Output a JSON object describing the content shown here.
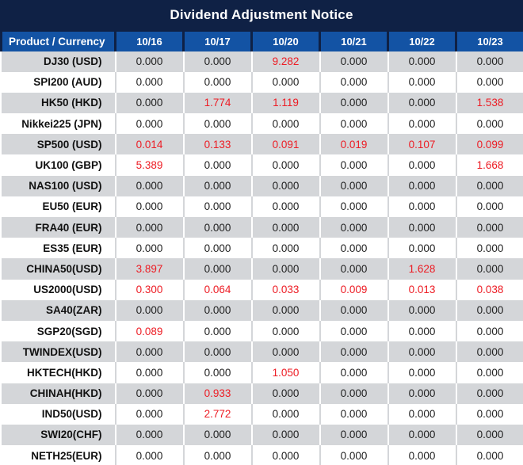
{
  "title": "Dividend Adjustment Notice",
  "header": {
    "product_column": "Product / Currency",
    "dates": [
      "10/16",
      "10/17",
      "10/20",
      "10/21",
      "10/22",
      "10/23"
    ]
  },
  "rows": [
    {
      "product": "DJ30 (USD)",
      "values": [
        "0.000",
        "0.000",
        "9.282",
        "0.000",
        "0.000",
        "0.000"
      ]
    },
    {
      "product": "SPI200 (AUD)",
      "values": [
        "0.000",
        "0.000",
        "0.000",
        "0.000",
        "0.000",
        "0.000"
      ]
    },
    {
      "product": "HK50 (HKD)",
      "values": [
        "0.000",
        "1.774",
        "1.119",
        "0.000",
        "0.000",
        "1.538"
      ]
    },
    {
      "product": "Nikkei225 (JPN)",
      "values": [
        "0.000",
        "0.000",
        "0.000",
        "0.000",
        "0.000",
        "0.000"
      ]
    },
    {
      "product": "SP500 (USD)",
      "values": [
        "0.014",
        "0.133",
        "0.091",
        "0.019",
        "0.107",
        "0.099"
      ]
    },
    {
      "product": "UK100 (GBP)",
      "values": [
        "5.389",
        "0.000",
        "0.000",
        "0.000",
        "0.000",
        "1.668"
      ]
    },
    {
      "product": "NAS100 (USD)",
      "values": [
        "0.000",
        "0.000",
        "0.000",
        "0.000",
        "0.000",
        "0.000"
      ]
    },
    {
      "product": "EU50 (EUR)",
      "values": [
        "0.000",
        "0.000",
        "0.000",
        "0.000",
        "0.000",
        "0.000"
      ]
    },
    {
      "product": "FRA40 (EUR)",
      "values": [
        "0.000",
        "0.000",
        "0.000",
        "0.000",
        "0.000",
        "0.000"
      ]
    },
    {
      "product": "ES35 (EUR)",
      "values": [
        "0.000",
        "0.000",
        "0.000",
        "0.000",
        "0.000",
        "0.000"
      ]
    },
    {
      "product": "CHINA50(USD)",
      "values": [
        "3.897",
        "0.000",
        "0.000",
        "0.000",
        "1.628",
        "0.000"
      ]
    },
    {
      "product": "US2000(USD)",
      "values": [
        "0.300",
        "0.064",
        "0.033",
        "0.009",
        "0.013",
        "0.038"
      ]
    },
    {
      "product": "SA40(ZAR)",
      "values": [
        "0.000",
        "0.000",
        "0.000",
        "0.000",
        "0.000",
        "0.000"
      ]
    },
    {
      "product": "SGP20(SGD)",
      "values": [
        "0.089",
        "0.000",
        "0.000",
        "0.000",
        "0.000",
        "0.000"
      ]
    },
    {
      "product": "TWINDEX(USD)",
      "values": [
        "0.000",
        "0.000",
        "0.000",
        "0.000",
        "0.000",
        "0.000"
      ]
    },
    {
      "product": "HKTECH(HKD)",
      "values": [
        "0.000",
        "0.000",
        "1.050",
        "0.000",
        "0.000",
        "0.000"
      ]
    },
    {
      "product": "CHINAH(HKD)",
      "values": [
        "0.000",
        "0.933",
        "0.000",
        "0.000",
        "0.000",
        "0.000"
      ]
    },
    {
      "product": "IND50(USD)",
      "values": [
        "0.000",
        "2.772",
        "0.000",
        "0.000",
        "0.000",
        "0.000"
      ]
    },
    {
      "product": "SWI20(CHF)",
      "values": [
        "0.000",
        "0.000",
        "0.000",
        "0.000",
        "0.000",
        "0.000"
      ]
    },
    {
      "product": "NETH25(EUR)",
      "values": [
        "0.000",
        "0.000",
        "0.000",
        "0.000",
        "0.000",
        "0.000"
      ]
    }
  ],
  "colors": {
    "title_bar_bg": "#0f2145",
    "header_bg": "#1353a4",
    "header_text": "#ffffff",
    "stripe_bg": "#d4d6d9",
    "row_bg": "#ffffff",
    "value_text": "#1f1f1f",
    "highlight_text": "#ed1c24"
  },
  "chart_data": {
    "type": "table",
    "title": "Dividend Adjustment Notice",
    "columns": [
      "Product / Currency",
      "10/16",
      "10/17",
      "10/20",
      "10/21",
      "10/22",
      "10/23"
    ],
    "rows": [
      [
        "DJ30 (USD)",
        0.0,
        0.0,
        9.282,
        0.0,
        0.0,
        0.0
      ],
      [
        "SPI200 (AUD)",
        0.0,
        0.0,
        0.0,
        0.0,
        0.0,
        0.0
      ],
      [
        "HK50 (HKD)",
        0.0,
        1.774,
        1.119,
        0.0,
        0.0,
        1.538
      ],
      [
        "Nikkei225 (JPN)",
        0.0,
        0.0,
        0.0,
        0.0,
        0.0,
        0.0
      ],
      [
        "SP500 (USD)",
        0.014,
        0.133,
        0.091,
        0.019,
        0.107,
        0.099
      ],
      [
        "UK100 (GBP)",
        5.389,
        0.0,
        0.0,
        0.0,
        0.0,
        1.668
      ],
      [
        "NAS100 (USD)",
        0.0,
        0.0,
        0.0,
        0.0,
        0.0,
        0.0
      ],
      [
        "EU50 (EUR)",
        0.0,
        0.0,
        0.0,
        0.0,
        0.0,
        0.0
      ],
      [
        "FRA40 (EUR)",
        0.0,
        0.0,
        0.0,
        0.0,
        0.0,
        0.0
      ],
      [
        "ES35 (EUR)",
        0.0,
        0.0,
        0.0,
        0.0,
        0.0,
        0.0
      ],
      [
        "CHINA50(USD)",
        3.897,
        0.0,
        0.0,
        0.0,
        1.628,
        0.0
      ],
      [
        "US2000(USD)",
        0.3,
        0.064,
        0.033,
        0.009,
        0.013,
        0.038
      ],
      [
        "SA40(ZAR)",
        0.0,
        0.0,
        0.0,
        0.0,
        0.0,
        0.0
      ],
      [
        "SGP20(SGD)",
        0.089,
        0.0,
        0.0,
        0.0,
        0.0,
        0.0
      ],
      [
        "TWINDEX(USD)",
        0.0,
        0.0,
        0.0,
        0.0,
        0.0,
        0.0
      ],
      [
        "HKTECH(HKD)",
        0.0,
        0.0,
        1.05,
        0.0,
        0.0,
        0.0
      ],
      [
        "CHINAH(HKD)",
        0.0,
        0.933,
        0.0,
        0.0,
        0.0,
        0.0
      ],
      [
        "IND50(USD)",
        0.0,
        2.772,
        0.0,
        0.0,
        0.0,
        0.0
      ],
      [
        "SWI20(CHF)",
        0.0,
        0.0,
        0.0,
        0.0,
        0.0,
        0.0
      ],
      [
        "NETH25(EUR)",
        0.0,
        0.0,
        0.0,
        0.0,
        0.0,
        0.0
      ]
    ],
    "notes": "Non-zero adjustment values are rendered in red; zero values in black.",
    "legend_position": "none",
    "grid": "vertical-only"
  }
}
